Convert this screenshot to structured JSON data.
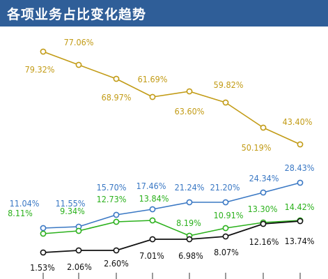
{
  "header": {
    "title": "各项业务占比变化趋势"
  },
  "colors": {
    "title_bar": "#2f5e98",
    "gold": "#c29b15",
    "blue": "#3a78c4",
    "green": "#2bb11c",
    "black": "#111111",
    "point_fill": "#ffffff"
  },
  "chart_data": {
    "type": "line",
    "title": "各项业务占比变化趋势",
    "x": [
      1,
      2,
      3,
      4,
      5,
      6,
      7,
      8
    ],
    "ylim": [
      0,
      90
    ],
    "grid": false,
    "series": [
      {
        "key": "gold",
        "values": [
          79.32,
          77.06,
          68.97,
          61.69,
          63.6,
          59.82,
          50.19,
          43.4
        ],
        "labels": [
          "79.32%",
          "77.06%",
          "68.97%",
          "61.69%",
          "63.60%",
          "59.82%",
          "50.19%",
          "43.40%"
        ]
      },
      {
        "key": "blue",
        "values": [
          11.04,
          11.55,
          15.7,
          17.46,
          21.24,
          21.2,
          24.34,
          28.43
        ],
        "labels": [
          "11.04%",
          "11.55%",
          "15.70%",
          "17.46%",
          "21.24%",
          "21.20%",
          "24.34%",
          "28.43%"
        ]
      },
      {
        "key": "green",
        "values": [
          8.11,
          9.34,
          12.73,
          13.84,
          8.19,
          10.91,
          13.3,
          14.42
        ],
        "labels": [
          "8.11%",
          "9.34%",
          "12.73%",
          "13.84%",
          "8.19%",
          "10.91%",
          "13.30%",
          "14.42%"
        ]
      },
      {
        "key": "black",
        "values": [
          1.53,
          2.06,
          2.6,
          7.01,
          6.98,
          8.07,
          12.16,
          13.74
        ],
        "labels": [
          "1.53%",
          "2.06%",
          "2.60%",
          "7.01%",
          "6.98%",
          "8.07%",
          "12.16%",
          "13.74%"
        ]
      }
    ]
  }
}
